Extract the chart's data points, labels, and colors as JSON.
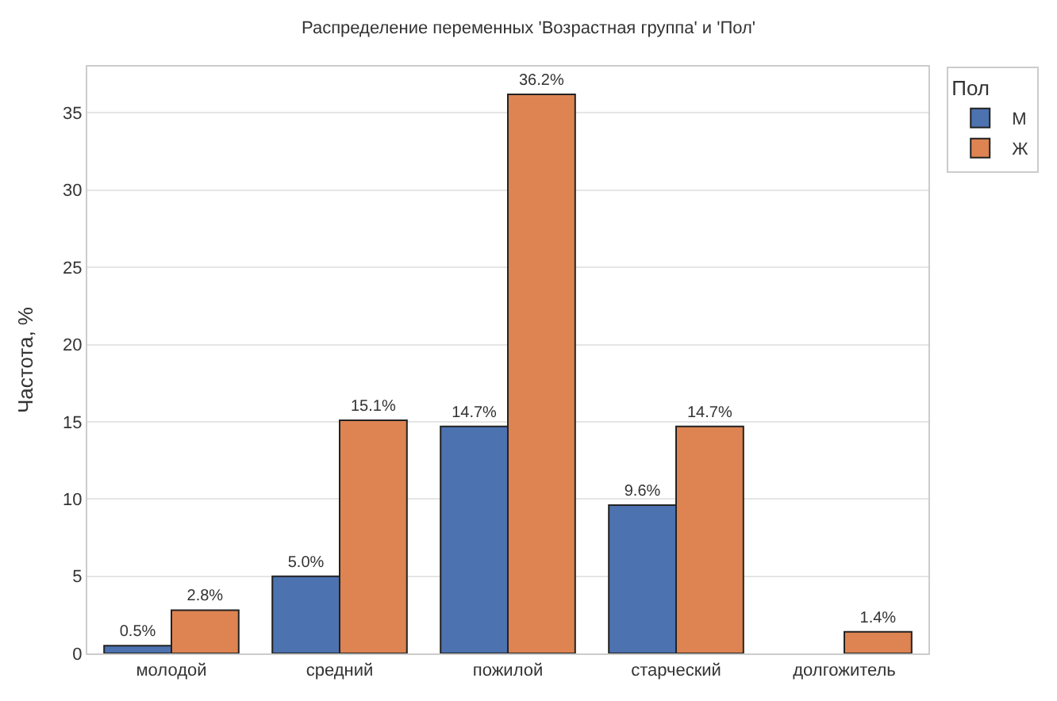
{
  "chart_data": {
    "type": "bar",
    "title": "Распределение переменных 'Возрастная группа' и 'Пол'",
    "ylabel": "Частота, %",
    "legend_title": "Пол",
    "categories": [
      "молодой",
      "средний",
      "пожилой",
      "старческий",
      "долгожитель"
    ],
    "series": [
      {
        "name": "М",
        "color": "#4c72b0",
        "values": [
          0.5,
          5.0,
          14.7,
          9.6,
          null
        ],
        "value_labels": [
          "0.5%",
          "5.0%",
          "14.7%",
          "9.6%",
          null
        ]
      },
      {
        "name": "Ж",
        "color": "#dd8452",
        "values": [
          2.8,
          15.1,
          36.2,
          14.7,
          1.4
        ],
        "value_labels": [
          "2.8%",
          "15.1%",
          "36.2%",
          "14.7%",
          "1.4%"
        ]
      }
    ],
    "ylim": [
      0,
      38
    ],
    "yticks": [
      0,
      5,
      10,
      15,
      20,
      25,
      30,
      35
    ],
    "grid": "y",
    "legend": "top right"
  }
}
